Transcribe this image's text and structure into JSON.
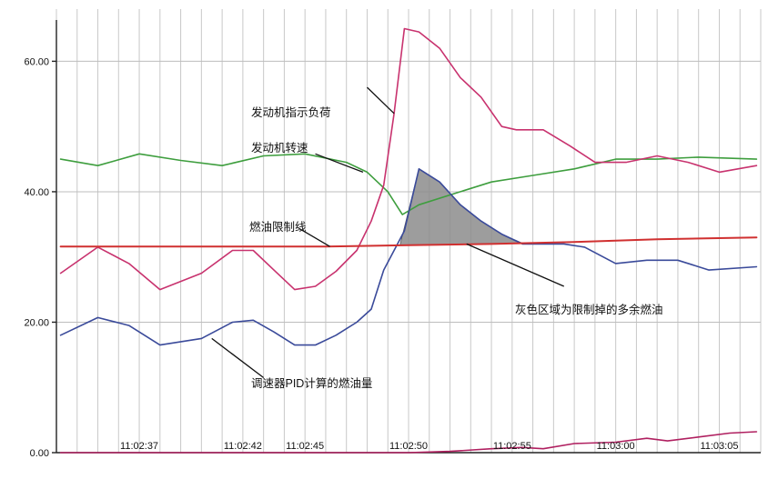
{
  "chart_data": {
    "type": "line",
    "title": "",
    "xlabel": "",
    "ylabel": "",
    "x_ticks": [
      "11:02:37",
      "11:02:42",
      "11:02:45",
      "11:02:50",
      "11:02:55",
      "11:03:00",
      "11:03:05"
    ],
    "x_tick_seconds": [
      37,
      42,
      45,
      50,
      55,
      60,
      65
    ],
    "xlim_seconds": [
      33,
      67
    ],
    "ylim": [
      0,
      68
    ],
    "y_ticks": [
      0,
      20,
      40,
      60
    ],
    "y_tick_labels": [
      "0.00",
      "20.00",
      "40.00",
      "60.00"
    ],
    "grid": true,
    "colors": {
      "load": "#c8326e",
      "speed": "#3e9e3e",
      "limit": "#d03030",
      "pid": "#3a4a9a",
      "bottom": "#b02060",
      "shade": "#8c8c8c"
    },
    "series": [
      {
        "key": "load",
        "x": [
          33.2,
          35,
          36.5,
          38,
          40,
          41.5,
          42.5,
          43.5,
          44.5,
          45.5,
          46.5,
          47.5,
          48.2,
          48.8,
          49.3,
          49.8,
          50.5,
          51.5,
          52.5,
          53.5,
          54.5,
          55.2,
          56.5,
          57.8,
          59,
          60.5,
          62,
          63.5,
          65,
          66.8
        ],
        "y": [
          27.5,
          31.5,
          29,
          25,
          27.5,
          31,
          31,
          28,
          25,
          25.5,
          27.8,
          31,
          35.5,
          41,
          52,
          65,
          64.5,
          62,
          57.5,
          54.5,
          50,
          49.5,
          49.5,
          47,
          44.5,
          44.5,
          45.5,
          44.5,
          43,
          44
        ]
      },
      {
        "key": "speed",
        "x": [
          33.2,
          35,
          37,
          39,
          41,
          43,
          45,
          47,
          48,
          49,
          49.7,
          50.5,
          52,
          54,
          56,
          58,
          60,
          62,
          64,
          66.8
        ],
        "y": [
          45,
          44,
          45.8,
          44.8,
          44,
          45.5,
          45.8,
          44.5,
          43,
          40,
          36.5,
          38,
          39.5,
          41.5,
          42.5,
          43.5,
          45,
          45,
          45.3,
          45
        ]
      },
      {
        "key": "limit",
        "x": [
          33.2,
          40,
          46,
          50,
          54,
          58,
          62,
          66.8
        ],
        "y": [
          31.6,
          31.6,
          31.6,
          31.8,
          32,
          32.3,
          32.7,
          33
        ]
      },
      {
        "key": "pid",
        "x": [
          33.2,
          35,
          36.5,
          38,
          40,
          41.5,
          42.5,
          43.5,
          44.5,
          45.5,
          46.5,
          47.5,
          48.2,
          48.8,
          49.3,
          49.8,
          50.5,
          51.5,
          52.5,
          53.5,
          54.5,
          55.5,
          56.5,
          57.5,
          58.5,
          60,
          61.5,
          63,
          64.5,
          66.8
        ],
        "y": [
          18,
          20.7,
          19.5,
          16.5,
          17.5,
          20,
          20.3,
          18.5,
          16.5,
          16.5,
          18,
          20,
          22,
          28,
          31,
          34,
          43.5,
          41.5,
          38,
          35.5,
          33.5,
          32,
          32,
          32,
          31.5,
          29,
          29.5,
          29.5,
          28,
          28.5
        ]
      },
      {
        "key": "bottom",
        "x": [
          33.2,
          40,
          46,
          50,
          52,
          54,
          55.5,
          56.5,
          58,
          60,
          61.5,
          62.5,
          64,
          65.5,
          66.8
        ],
        "y": [
          0,
          0,
          0,
          0,
          0.2,
          0.6,
          0.8,
          0.6,
          1.4,
          1.6,
          2.2,
          1.8,
          2.4,
          3,
          3.2
        ]
      }
    ],
    "shaded_region": {
      "x": [
        49.6,
        50.5,
        51.5,
        52.5,
        53.5,
        54.5,
        55.5,
        55.5,
        49.6
      ],
      "y": [
        32,
        43.5,
        41.5,
        38,
        35.5,
        33.5,
        32.1,
        32.1,
        31.8
      ]
    },
    "annotations": [
      {
        "key": "load",
        "text": "发动机指示负荷",
        "anchor": [
          49.3,
          52
        ],
        "leader": [
          [
            48.0,
            56
          ],
          [
            49.3,
            52
          ]
        ]
      },
      {
        "key": "speed",
        "text": "发动机转速",
        "anchor": [
          47.8,
          43
        ],
        "leader": [
          [
            45.5,
            45.8
          ],
          [
            47.8,
            43
          ]
        ]
      },
      {
        "key": "limit",
        "text": "燃油限制线",
        "anchor": [
          46.2,
          31.6
        ],
        "leader": [
          [
            44.7,
            34.4
          ],
          [
            46.2,
            31.6
          ]
        ]
      },
      {
        "key": "shade",
        "text": "灰色区域为限制掉的多余燃油",
        "anchor": [
          52.8,
          32
        ],
        "leader": [
          [
            57.5,
            25.5
          ],
          [
            52.8,
            32
          ]
        ]
      },
      {
        "key": "pid",
        "text": "调速器PID计算的燃油量",
        "anchor": [
          40.5,
          17.5
        ],
        "leader": [
          [
            43.0,
            11.5
          ],
          [
            40.5,
            17.5
          ]
        ]
      }
    ]
  }
}
